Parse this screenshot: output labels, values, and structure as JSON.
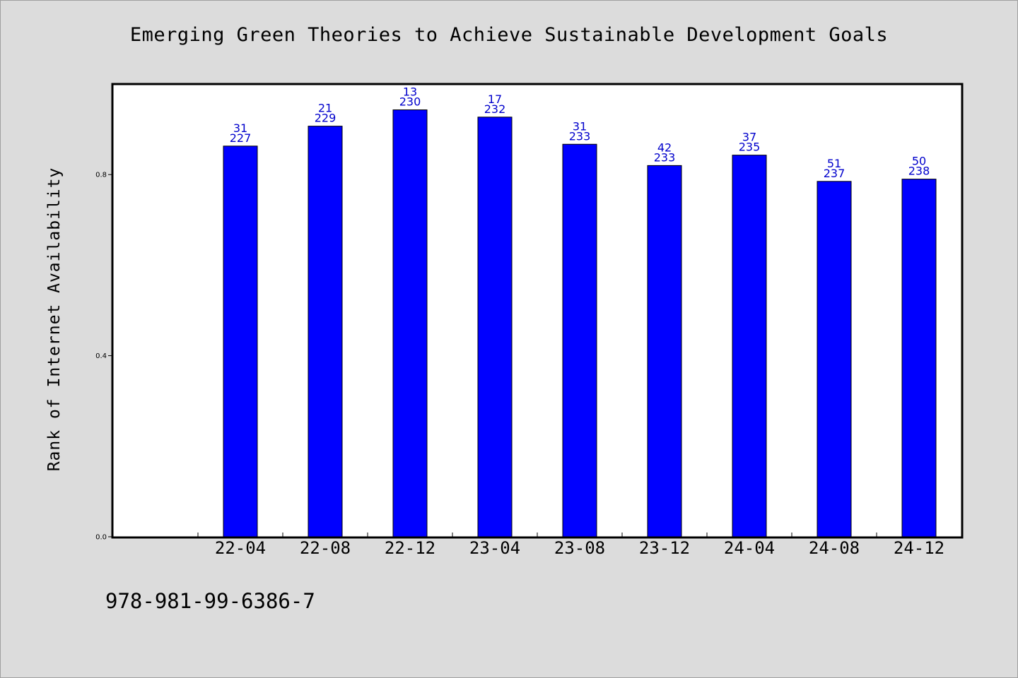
{
  "chart_data": {
    "type": "bar",
    "title": "Emerging Green Theories to Achieve Sustainable Development Goals",
    "ylabel": "Rank of Internet Availability",
    "xlabel": "",
    "categories": [
      "22-04",
      "22-08",
      "22-12",
      "23-04",
      "23-08",
      "23-12",
      "24-04",
      "24-08",
      "24-12"
    ],
    "values": [
      0.863,
      0.907,
      0.943,
      0.927,
      0.867,
      0.82,
      0.843,
      0.785,
      0.79
    ],
    "bar_labels": [
      [
        "31",
        "227"
      ],
      [
        "21",
        "229"
      ],
      [
        "13",
        "230"
      ],
      [
        "17",
        "232"
      ],
      [
        "31",
        "233"
      ],
      [
        "42",
        "233"
      ],
      [
        "37",
        "235"
      ],
      [
        "51",
        "237"
      ],
      [
        "50",
        "238"
      ]
    ],
    "yticks": [
      "0.0",
      "0.4",
      "0.8"
    ],
    "ytick_values": [
      0.0,
      0.4,
      0.8
    ],
    "ylim": [
      0,
      1.0
    ],
    "grid": false,
    "colors": {
      "bar": "#0000ff",
      "bar_label": "#0000cc",
      "background": "#dcdcdc",
      "plot_bg": "#ffffff"
    }
  },
  "footer": {
    "code": "978-981-99-6386-7"
  }
}
